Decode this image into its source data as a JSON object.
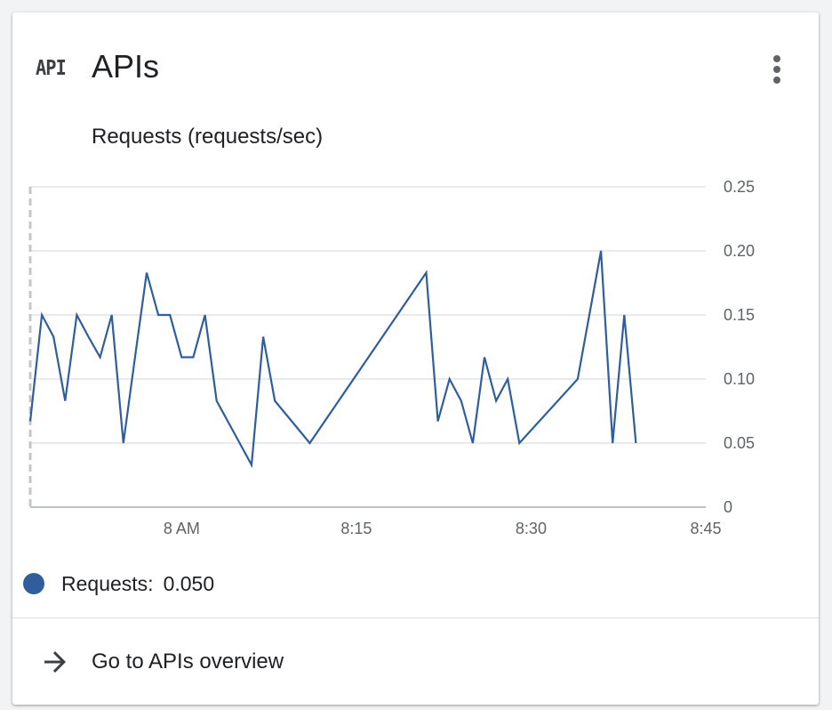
{
  "card": {
    "icon": "API",
    "title": "APIs",
    "menu_icon": "more-vert-icon"
  },
  "chart": {
    "subtitle": "Requests (requests/sec)"
  },
  "chart_data": {
    "type": "line",
    "title": "Requests (requests/sec)",
    "xlabel": "",
    "ylabel": "",
    "x_ticks": [
      "8 AM",
      "8:15",
      "8:30",
      "8:45"
    ],
    "y_ticks": [
      "0",
      "0.05",
      "0.10",
      "0.15",
      "0.20",
      "0.25"
    ],
    "ylim": [
      0,
      0.25
    ],
    "xlim": [
      "7:47",
      "8:45"
    ],
    "grid": true,
    "y_axis_position": "right",
    "series": [
      {
        "name": "Requests",
        "color": "#305e9c",
        "x": [
          "7:47",
          "7:48",
          "7:49",
          "7:50",
          "7:51",
          "7:52",
          "7:53",
          "7:54",
          "7:55",
          "7:56",
          "7:57",
          "7:58",
          "7:59",
          "8:00",
          "8:01",
          "8:02",
          "8:03",
          "8:06",
          "8:07",
          "8:08",
          "8:11",
          "8:21",
          "8:22",
          "8:23",
          "8:24",
          "8:25",
          "8:26",
          "8:27",
          "8:28",
          "8:29",
          "8:34",
          "8:35",
          "8:36",
          "8:37",
          "8:38",
          "8:39"
        ],
        "values": [
          0.067,
          0.15,
          0.133,
          0.083,
          0.15,
          0.133,
          0.117,
          0.15,
          0.05,
          0.117,
          0.183,
          0.15,
          0.15,
          0.117,
          0.117,
          0.15,
          0.083,
          0.033,
          0.133,
          0.083,
          0.05,
          0.183,
          0.067,
          0.1,
          0.083,
          0.05,
          0.117,
          0.083,
          0.1,
          0.05,
          0.1,
          0.15,
          0.2,
          0.05,
          0.15,
          0.05
        ]
      }
    ]
  },
  "legend": {
    "label": "Requests:",
    "value": "0.050",
    "color": "#305e9c"
  },
  "footer": {
    "link_label": "Go to APIs overview",
    "icon": "arrow-forward-icon"
  }
}
